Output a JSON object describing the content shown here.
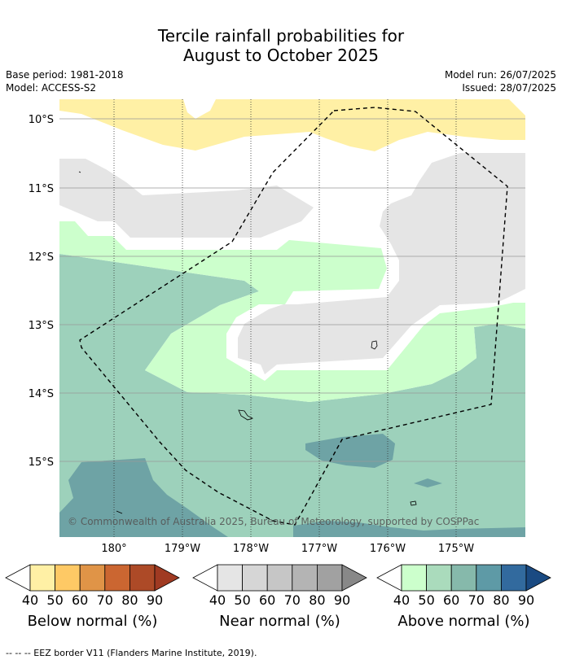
{
  "title": {
    "line1": "Tercile rainfall probabilities for",
    "line2": "August to October 2025"
  },
  "meta": {
    "base_period": "Base period: 1981-2018",
    "model": "Model: ACCESS-S2",
    "model_run": "Model run: 26/07/2025",
    "issued": "Issued: 28/07/2025"
  },
  "map": {
    "lat_labels": [
      "10°S",
      "11°S",
      "12°S",
      "13°S",
      "14°S",
      "15°S"
    ],
    "lon_labels": [
      "180°",
      "179°W",
      "178°W",
      "177°W",
      "176°W",
      "175°W"
    ],
    "copyright": "© Commonwealth of Australia 2025, Bureau of Meteorology, supported by COSPPac",
    "category_colors": {
      "below_normal_40_50": "#fff0a5",
      "near_normal_40_50": "#e5e5e5",
      "above_normal_40_50": "#ccffcc",
      "above_normal_50_60": "#9dd1bb",
      "above_normal_60_70": "#6ea3a5"
    }
  },
  "colorbars": [
    {
      "name": "below-normal",
      "title": "Below normal (%)",
      "ticks": [
        "40",
        "50",
        "60",
        "70",
        "80",
        "90"
      ],
      "colors": [
        "#fff0a5",
        "#fec965",
        "#e09447",
        "#cb6631",
        "#ad4a27",
        "#a03a22"
      ]
    },
    {
      "name": "near-normal",
      "title": "Near normal (%)",
      "ticks": [
        "40",
        "50",
        "60",
        "70",
        "80",
        "90"
      ],
      "colors": [
        "#e5e5e5",
        "#d6d6d6",
        "#c6c6c6",
        "#b4b4b4",
        "#a1a1a1",
        "#888888"
      ]
    },
    {
      "name": "above-normal",
      "title": "Above normal (%)",
      "ticks": [
        "40",
        "50",
        "60",
        "70",
        "80",
        "90"
      ],
      "colors": [
        "#ccffcc",
        "#aadbbc",
        "#86b9ab",
        "#5e9aa6",
        "#326a9e",
        "#1a4a82"
      ]
    }
  ],
  "footnote": "-- -- -- EEZ border V11 (Flanders Marine Institute, 2019)."
}
